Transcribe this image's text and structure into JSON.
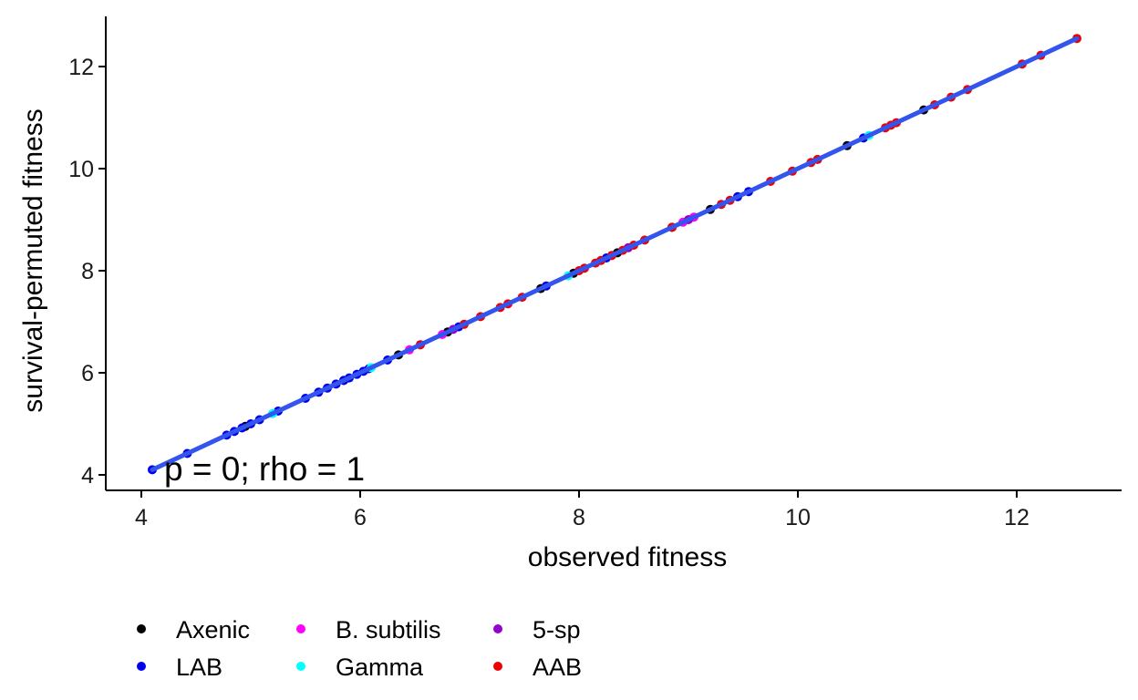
{
  "chart_data": {
    "type": "scatter",
    "title": "",
    "xlabel": "observed fitness",
    "ylabel": "survival-permuted fitness",
    "xlim": [
      3.7,
      13.0
    ],
    "ylim": [
      3.7,
      13.0
    ],
    "x_ticks": [
      4,
      6,
      8,
      10,
      12
    ],
    "y_ticks": [
      4,
      6,
      8,
      10,
      12
    ],
    "grid": false,
    "annotation": "p = 0; rho = 1",
    "fit_line": {
      "color": "#3355ee",
      "from": [
        4.1,
        4.1
      ],
      "to": [
        12.55,
        12.55
      ]
    },
    "legend_position": "bottom",
    "series": [
      {
        "name": "Axenic",
        "color": "#000000",
        "x": [
          6.35,
          7.65,
          7.95,
          8.35,
          8.85,
          9.2,
          10.45,
          11.15,
          4.95,
          5.85,
          6.8
        ]
      },
      {
        "name": "LAB",
        "color": "#0000ee",
        "x": [
          4.1,
          4.42,
          4.78,
          4.85,
          4.92,
          5.0,
          5.08,
          5.25,
          5.5,
          5.62,
          5.7,
          5.78,
          5.85,
          5.9,
          5.97,
          6.03,
          6.08,
          6.25,
          6.9,
          7.7,
          8.25,
          9.45,
          9.55,
          10.6
        ]
      },
      {
        "name": "B. subtilis",
        "color": "#ff00ff",
        "x": [
          6.45,
          6.75,
          8.95,
          9.05,
          6.55
        ]
      },
      {
        "name": "Gamma",
        "color": "#00ffff",
        "x": [
          5.2,
          6.1,
          7.9,
          10.65
        ]
      },
      {
        "name": "5-sp",
        "color": "#9400d3",
        "x": [
          6.85,
          8.45,
          9.0
        ]
      },
      {
        "name": "AAB",
        "color": "#ee0000",
        "x": [
          6.55,
          6.95,
          7.1,
          7.28,
          7.35,
          7.48,
          8.0,
          8.05,
          8.15,
          8.2,
          8.3,
          8.4,
          8.5,
          8.6,
          8.85,
          9.3,
          9.38,
          9.75,
          9.95,
          10.12,
          10.18,
          10.8,
          10.85,
          10.9,
          11.25,
          11.4,
          11.55,
          12.05,
          12.22,
          12.55
        ]
      }
    ]
  }
}
